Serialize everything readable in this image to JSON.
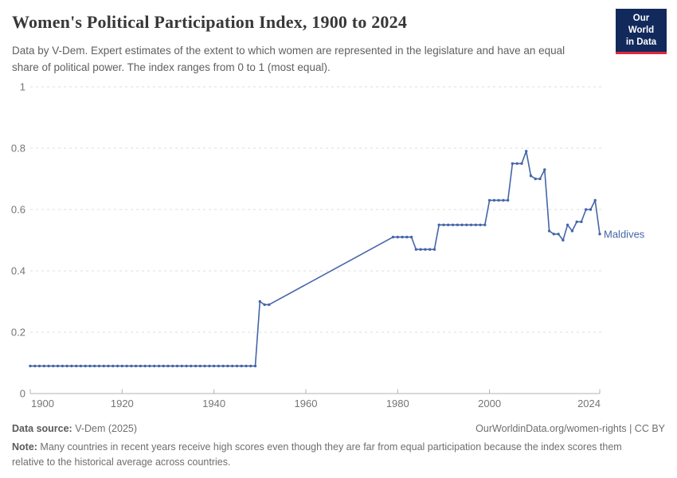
{
  "header": {
    "title": "Women's Political Participation Index, 1900 to 2024",
    "subtitle": "Data by V-Dem. Expert estimates of the extent to which women are represented in the legislature and have an equal share of political power. The index ranges from 0 to 1 (most equal).",
    "logo": {
      "line1": "Our World",
      "line2": "in Data"
    }
  },
  "chart_data": {
    "type": "line",
    "title": "Women's Political Participation Index, 1900 to 2024",
    "xlabel": "",
    "ylabel": "",
    "xlim": [
      1900,
      2024
    ],
    "ylim": [
      0,
      1
    ],
    "x_ticks": [
      1900,
      1920,
      1940,
      1960,
      1980,
      2000,
      2024
    ],
    "y_ticks": [
      0,
      0.2,
      0.4,
      0.6,
      0.8,
      1
    ],
    "grid": "horizontal dashed gridlines, solid zero line",
    "legend": "entity label at line end",
    "data_gap_note": "no annual data points between 1952 and 1979; straight interpolated segment",
    "series": [
      {
        "name": "Maldives",
        "color": "#4465a9",
        "points": [
          [
            1900,
            0.09
          ],
          [
            1901,
            0.09
          ],
          [
            1902,
            0.09
          ],
          [
            1903,
            0.09
          ],
          [
            1904,
            0.09
          ],
          [
            1905,
            0.09
          ],
          [
            1906,
            0.09
          ],
          [
            1907,
            0.09
          ],
          [
            1908,
            0.09
          ],
          [
            1909,
            0.09
          ],
          [
            1910,
            0.09
          ],
          [
            1911,
            0.09
          ],
          [
            1912,
            0.09
          ],
          [
            1913,
            0.09
          ],
          [
            1914,
            0.09
          ],
          [
            1915,
            0.09
          ],
          [
            1916,
            0.09
          ],
          [
            1917,
            0.09
          ],
          [
            1918,
            0.09
          ],
          [
            1919,
            0.09
          ],
          [
            1920,
            0.09
          ],
          [
            1921,
            0.09
          ],
          [
            1922,
            0.09
          ],
          [
            1923,
            0.09
          ],
          [
            1924,
            0.09
          ],
          [
            1925,
            0.09
          ],
          [
            1926,
            0.09
          ],
          [
            1927,
            0.09
          ],
          [
            1928,
            0.09
          ],
          [
            1929,
            0.09
          ],
          [
            1930,
            0.09
          ],
          [
            1931,
            0.09
          ],
          [
            1932,
            0.09
          ],
          [
            1933,
            0.09
          ],
          [
            1934,
            0.09
          ],
          [
            1935,
            0.09
          ],
          [
            1936,
            0.09
          ],
          [
            1937,
            0.09
          ],
          [
            1938,
            0.09
          ],
          [
            1939,
            0.09
          ],
          [
            1940,
            0.09
          ],
          [
            1941,
            0.09
          ],
          [
            1942,
            0.09
          ],
          [
            1943,
            0.09
          ],
          [
            1944,
            0.09
          ],
          [
            1945,
            0.09
          ],
          [
            1946,
            0.09
          ],
          [
            1947,
            0.09
          ],
          [
            1948,
            0.09
          ],
          [
            1949,
            0.09
          ],
          [
            1950,
            0.3
          ],
          [
            1951,
            0.29
          ],
          [
            1952,
            0.29
          ],
          [
            1979,
            0.51
          ],
          [
            1980,
            0.51
          ],
          [
            1981,
            0.51
          ],
          [
            1982,
            0.51
          ],
          [
            1983,
            0.51
          ],
          [
            1984,
            0.47
          ],
          [
            1985,
            0.47
          ],
          [
            1986,
            0.47
          ],
          [
            1987,
            0.47
          ],
          [
            1988,
            0.47
          ],
          [
            1989,
            0.55
          ],
          [
            1990,
            0.55
          ],
          [
            1991,
            0.55
          ],
          [
            1992,
            0.55
          ],
          [
            1993,
            0.55
          ],
          [
            1994,
            0.55
          ],
          [
            1995,
            0.55
          ],
          [
            1996,
            0.55
          ],
          [
            1997,
            0.55
          ],
          [
            1998,
            0.55
          ],
          [
            1999,
            0.55
          ],
          [
            2000,
            0.63
          ],
          [
            2001,
            0.63
          ],
          [
            2002,
            0.63
          ],
          [
            2003,
            0.63
          ],
          [
            2004,
            0.63
          ],
          [
            2005,
            0.75
          ],
          [
            2006,
            0.75
          ],
          [
            2007,
            0.75
          ],
          [
            2008,
            0.79
          ],
          [
            2009,
            0.71
          ],
          [
            2010,
            0.7
          ],
          [
            2011,
            0.7
          ],
          [
            2012,
            0.73
          ],
          [
            2013,
            0.53
          ],
          [
            2014,
            0.52
          ],
          [
            2015,
            0.52
          ],
          [
            2016,
            0.5
          ],
          [
            2017,
            0.55
          ],
          [
            2018,
            0.53
          ],
          [
            2019,
            0.56
          ],
          [
            2020,
            0.56
          ],
          [
            2021,
            0.6
          ],
          [
            2022,
            0.6
          ],
          [
            2023,
            0.63
          ],
          [
            2024,
            0.52
          ]
        ]
      }
    ]
  },
  "footer": {
    "source_label": "Data source:",
    "source_value": " V-Dem (2025)",
    "link": "OurWorldinData.org/women-rights | CC BY",
    "note_label": "Note:",
    "note_value": " Many countries in recent years receive high scores even though they are far from equal participation because the index scores them relative to the historical average across countries."
  },
  "colors": {
    "line": "#4465a9",
    "grid": "#dcdcdc",
    "axis": "#b3b3b3",
    "axis_text": "#757575",
    "logo_bg": "#12295c",
    "logo_accent": "#e0283c"
  }
}
